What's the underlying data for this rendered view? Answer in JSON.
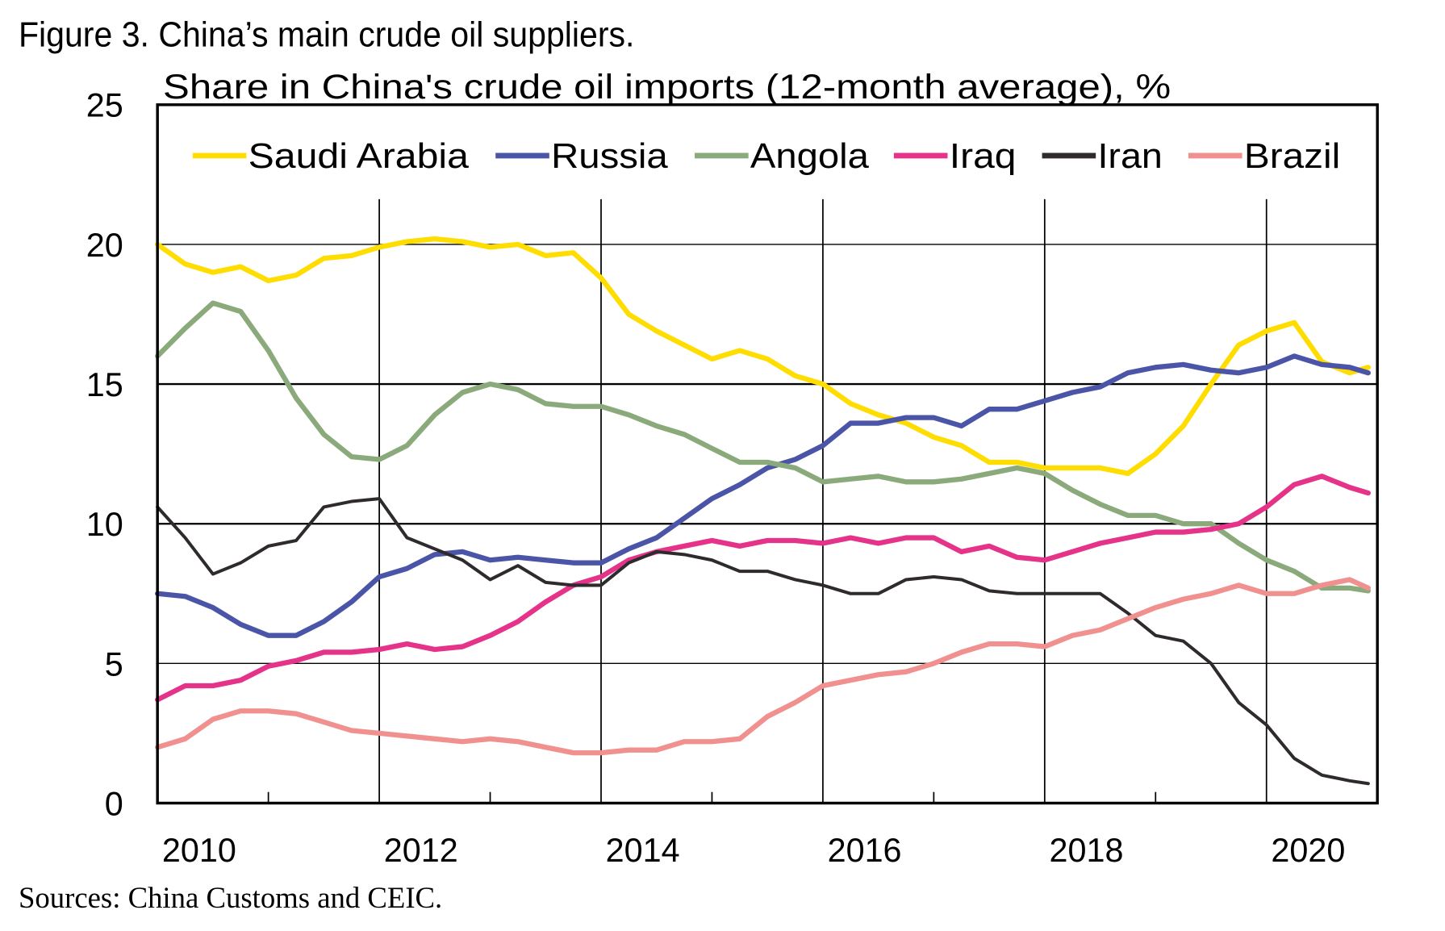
{
  "title": "Figure 3. China’s main crude oil suppliers.",
  "source": "Sources: China Customs and CEIC.",
  "chart_data": {
    "type": "line",
    "title": "Figure 3. China’s main crude oil suppliers.",
    "subtitle": "Share in China's crude oil imports (12-month average), %",
    "xlabel": "",
    "ylabel": "",
    "xlim": [
      2010,
      2021
    ],
    "ylim": [
      0,
      25
    ],
    "yticks": [
      "0",
      "5",
      "10",
      "15",
      "20",
      "25"
    ],
    "xticks": [
      "2010",
      "2012",
      "2014",
      "2016",
      "2018",
      "2020"
    ],
    "grid": true,
    "legend_position": "top",
    "x": [
      2010.0,
      2010.25,
      2010.5,
      2010.75,
      2011.0,
      2011.25,
      2011.5,
      2011.75,
      2012.0,
      2012.25,
      2012.5,
      2012.75,
      2013.0,
      2013.25,
      2013.5,
      2013.75,
      2014.0,
      2014.25,
      2014.5,
      2014.75,
      2015.0,
      2015.25,
      2015.5,
      2015.75,
      2016.0,
      2016.25,
      2016.5,
      2016.75,
      2017.0,
      2017.25,
      2017.5,
      2017.75,
      2018.0,
      2018.25,
      2018.5,
      2018.75,
      2019.0,
      2019.25,
      2019.5,
      2019.75,
      2020.0,
      2020.25,
      2020.5,
      2020.75,
      2020.917
    ],
    "series": [
      {
        "name": "Saudi Arabia",
        "color": "#FFDD00",
        "values": [
          20.0,
          19.3,
          19.0,
          19.2,
          18.7,
          18.9,
          19.5,
          19.6,
          19.9,
          20.1,
          20.2,
          20.1,
          19.9,
          20.0,
          19.6,
          19.7,
          18.8,
          17.5,
          16.9,
          16.4,
          15.9,
          16.2,
          15.9,
          15.3,
          15.0,
          14.3,
          13.9,
          13.6,
          13.1,
          12.8,
          12.2,
          12.2,
          12.0,
          12.0,
          12.0,
          11.8,
          12.5,
          13.5,
          15.0,
          16.4,
          16.9,
          17.2,
          15.8,
          15.4,
          15.6
        ]
      },
      {
        "name": "Russia",
        "color": "#4B55A8",
        "values": [
          7.5,
          7.4,
          7.0,
          6.4,
          6.0,
          6.0,
          6.5,
          7.2,
          8.1,
          8.4,
          8.9,
          9.0,
          8.7,
          8.8,
          8.7,
          8.6,
          8.6,
          9.1,
          9.5,
          10.2,
          10.9,
          11.4,
          12.0,
          12.3,
          12.8,
          13.6,
          13.6,
          13.8,
          13.8,
          13.5,
          14.1,
          14.1,
          14.4,
          14.7,
          14.9,
          15.4,
          15.6,
          15.7,
          15.5,
          15.4,
          15.6,
          16.0,
          15.7,
          15.6,
          15.4
        ]
      },
      {
        "name": "Angola",
        "color": "#8BAA7B",
        "values": [
          16.0,
          17.0,
          17.9,
          17.6,
          16.2,
          14.5,
          13.2,
          12.4,
          12.3,
          12.8,
          13.9,
          14.7,
          15.0,
          14.8,
          14.3,
          14.2,
          14.2,
          13.9,
          13.5,
          13.2,
          12.7,
          12.2,
          12.2,
          12.0,
          11.5,
          11.6,
          11.7,
          11.5,
          11.5,
          11.6,
          11.8,
          12.0,
          11.8,
          11.2,
          10.7,
          10.3,
          10.3,
          10.0,
          10.0,
          9.3,
          8.7,
          8.3,
          7.7,
          7.7,
          7.6
        ]
      },
      {
        "name": "Iraq",
        "color": "#E5338A",
        "values": [
          3.7,
          4.2,
          4.2,
          4.4,
          4.9,
          5.1,
          5.4,
          5.4,
          5.5,
          5.7,
          5.5,
          5.6,
          6.0,
          6.5,
          7.2,
          7.8,
          8.1,
          8.7,
          9.0,
          9.2,
          9.4,
          9.2,
          9.4,
          9.4,
          9.3,
          9.5,
          9.3,
          9.5,
          9.5,
          9.0,
          9.2,
          8.8,
          8.7,
          9.0,
          9.3,
          9.5,
          9.7,
          9.7,
          9.8,
          10.0,
          10.6,
          11.4,
          11.7,
          11.3,
          11.1
        ]
      },
      {
        "name": "Iran",
        "color": "#2E2A2E",
        "values": [
          10.6,
          9.5,
          8.2,
          8.6,
          9.2,
          9.4,
          10.6,
          10.8,
          10.9,
          9.5,
          9.1,
          8.7,
          8.0,
          8.5,
          7.9,
          7.8,
          7.8,
          8.6,
          9.0,
          8.9,
          8.7,
          8.3,
          8.3,
          8.0,
          7.8,
          7.5,
          7.5,
          8.0,
          8.1,
          8.0,
          7.6,
          7.5,
          7.5,
          7.5,
          7.5,
          6.8,
          6.0,
          5.8,
          5.0,
          3.6,
          2.8,
          1.6,
          1.0,
          0.8,
          0.7
        ]
      },
      {
        "name": "Brazil",
        "color": "#F0908F",
        "values": [
          2.0,
          2.3,
          3.0,
          3.3,
          3.3,
          3.2,
          2.9,
          2.6,
          2.5,
          2.4,
          2.3,
          2.2,
          2.3,
          2.2,
          2.0,
          1.8,
          1.8,
          1.9,
          1.9,
          2.2,
          2.2,
          2.3,
          3.1,
          3.6,
          4.2,
          4.4,
          4.6,
          4.7,
          5.0,
          5.4,
          5.7,
          5.7,
          5.6,
          6.0,
          6.2,
          6.6,
          7.0,
          7.3,
          7.5,
          7.8,
          7.5,
          7.5,
          7.8,
          8.0,
          7.7
        ]
      }
    ]
  }
}
